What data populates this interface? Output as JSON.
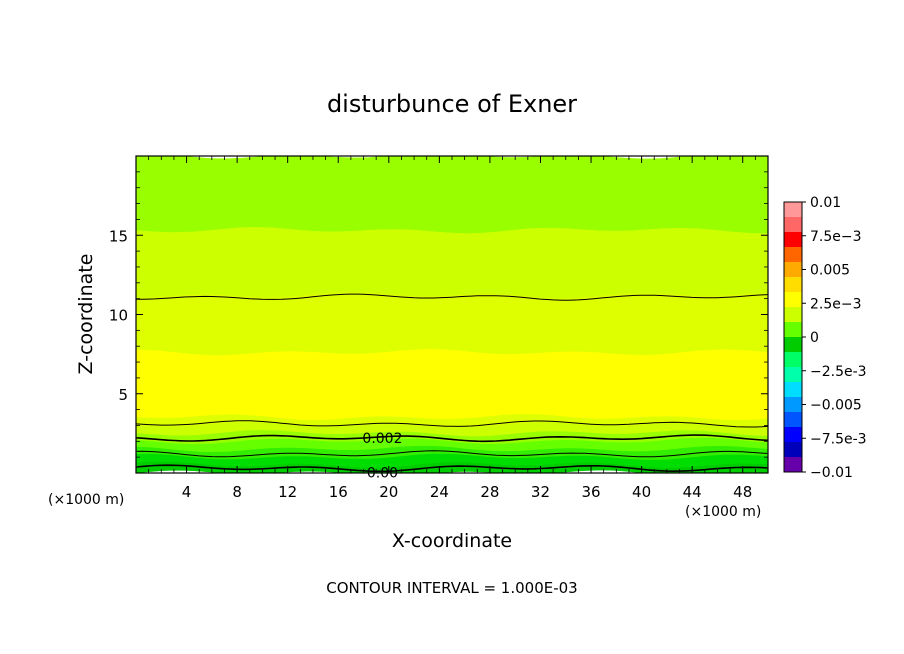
{
  "chart_data": {
    "type": "heatmap",
    "title": "disturbunce of Exner",
    "xlabel": "X-coordinate",
    "ylabel": "Z-coordinate",
    "x_unit": "(×1000 m)",
    "y_unit": "(×1000 m)",
    "xlim": [
      0,
      50
    ],
    "ylim": [
      0,
      20
    ],
    "x_ticks": [
      "4",
      "8",
      "12",
      "16",
      "20",
      "24",
      "28",
      "32",
      "36",
      "40",
      "44",
      "48"
    ],
    "y_ticks": [
      "5",
      "10",
      "15"
    ],
    "colorbar": {
      "labels": [
        "0.01",
        "7.5e-3",
        "0.005",
        "2.5e-3",
        "0",
        "-2.5e-3",
        "-0.005",
        "-7.5e-3",
        "-0.01"
      ],
      "range": [
        -0.01,
        0.01
      ],
      "colors_top_to_bottom": [
        "#ff9999",
        "#ff6666",
        "#ff0000",
        "#ff6600",
        "#ffaa00",
        "#ffdd00",
        "#ffff00",
        "#ccff00",
        "#66ff00",
        "#00cc00",
        "#00ff66",
        "#00ffaa",
        "#00ddff",
        "#0099ff",
        "#0055ff",
        "#0000ff",
        "#0000bb",
        "#6600aa"
      ]
    },
    "bands": [
      {
        "z_from": 15.3,
        "z_to": 20.0,
        "value_range": [
          0.0015,
          0.002
        ],
        "color": "#99ff00"
      },
      {
        "z_from": 11.2,
        "z_to": 15.3,
        "value_range": [
          0.002,
          0.0025
        ],
        "color": "#ccff00"
      },
      {
        "z_from": 7.6,
        "z_to": 11.2,
        "value_range": [
          0.0025,
          0.003
        ],
        "color": "#ddff00"
      },
      {
        "z_from": 3.5,
        "z_to": 7.6,
        "value_range": [
          0.003,
          0.0035
        ],
        "color": "#ffff00"
      },
      {
        "z_from": 3.0,
        "z_to": 3.5,
        "value_range": [
          0.0025,
          0.003
        ],
        "color": "#ddff00"
      },
      {
        "z_from": 2.5,
        "z_to": 3.0,
        "value_range": [
          0.002,
          0.0025
        ],
        "color": "#ccff00"
      },
      {
        "z_from": 2.0,
        "z_to": 2.5,
        "value_range": [
          0.0015,
          0.002
        ],
        "color": "#99ff00"
      },
      {
        "z_from": 1.5,
        "z_to": 2.0,
        "value_range": [
          0.001,
          0.0015
        ],
        "color": "#66ff00"
      },
      {
        "z_from": 1.0,
        "z_to": 1.5,
        "value_range": [
          0.0005,
          0.001
        ],
        "color": "#33ee00"
      },
      {
        "z_from": 0.5,
        "z_to": 1.0,
        "value_range": [
          0.0,
          0.0005
        ],
        "color": "#00dd00"
      },
      {
        "z_from": 0.0,
        "z_to": 0.5,
        "value_range": [
          -0.0005,
          0.0
        ],
        "color": "#00cc00"
      }
    ],
    "contours": [
      {
        "z": 11.1,
        "value": 0.003,
        "label": ""
      },
      {
        "z": 3.1,
        "value": 0.003,
        "label": ""
      },
      {
        "z": 2.2,
        "value": 0.002,
        "label": "0.002"
      },
      {
        "z": 1.2,
        "value": 0.001,
        "label": ""
      },
      {
        "z": 0.3,
        "value": 0.0,
        "label": "0.00"
      }
    ],
    "footer": "CONTOUR INTERVAL = 1.000E-03"
  }
}
